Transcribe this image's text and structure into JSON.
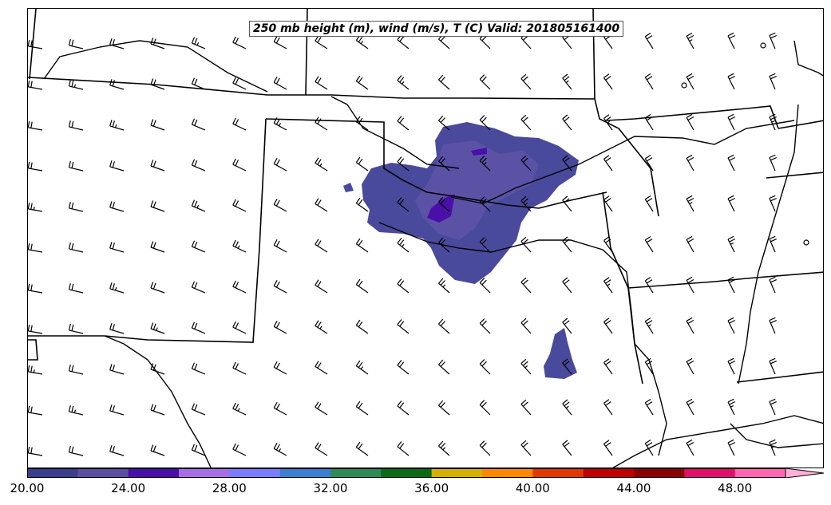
{
  "title": "250 mb height (m), wind (m/s), T (C) Valid: 201805161400",
  "colorbar": {
    "tick_labels": [
      "20.00",
      "24.00",
      "28.00",
      "32.00",
      "36.00",
      "40.00",
      "44.00",
      "48.00"
    ],
    "colors": [
      "#3b3d8f",
      "#5a4fa0",
      "#4a0fa8",
      "#a66ee6",
      "#7a7cff",
      "#3a7fd0",
      "#2e8b57",
      "#0b6a14",
      "#d4b000",
      "#ff8800",
      "#e03a00",
      "#c00000",
      "#8b0000",
      "#e0106a",
      "#ff66b0",
      "#ffb0d8"
    ],
    "extend": "max"
  },
  "colors": {
    "outline": "#000000",
    "fill_main": "#4a4a9c",
    "fill_light": "#5b52a6",
    "fill_dark": "#4a0fa8"
  }
}
